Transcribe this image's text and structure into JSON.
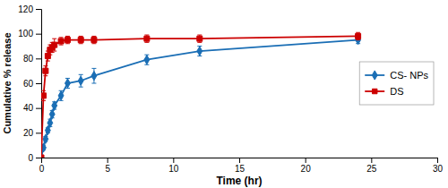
{
  "chart_data": {
    "type": "line",
    "xlabel": "Time (hr)",
    "ylabel": "Cumulative % release",
    "x": [
      0,
      0.17,
      0.33,
      0.5,
      0.67,
      0.83,
      1.0,
      1.5,
      2.0,
      3.0,
      4.0,
      8.0,
      12.0,
      24.0
    ],
    "series": [
      {
        "name": "CS- NPs",
        "color": "#1a6eb5",
        "marker": "diamond",
        "values": [
          0,
          8,
          15,
          22,
          28,
          35,
          42,
          50,
          60,
          62,
          66,
          79,
          86,
          95
        ],
        "errors": [
          0,
          2,
          2,
          2,
          3,
          3,
          3,
          4,
          4,
          5,
          6,
          4,
          4,
          3
        ]
      },
      {
        "name": "DS",
        "color": "#cc0000",
        "marker": "square",
        "values": [
          0,
          50,
          70,
          82,
          87,
          89,
          91,
          94,
          95,
          95,
          95,
          96,
          96,
          98
        ],
        "errors": [
          0,
          4,
          4,
          4,
          4,
          4,
          5,
          3,
          3,
          3,
          3,
          3,
          3,
          3
        ]
      }
    ],
    "xlim": [
      0,
      30
    ],
    "ylim": [
      0,
      120
    ],
    "xticks": [
      0,
      5,
      10,
      15,
      20,
      25,
      30
    ],
    "yticks": [
      0,
      20,
      40,
      60,
      80,
      100,
      120
    ],
    "legend": "right"
  }
}
